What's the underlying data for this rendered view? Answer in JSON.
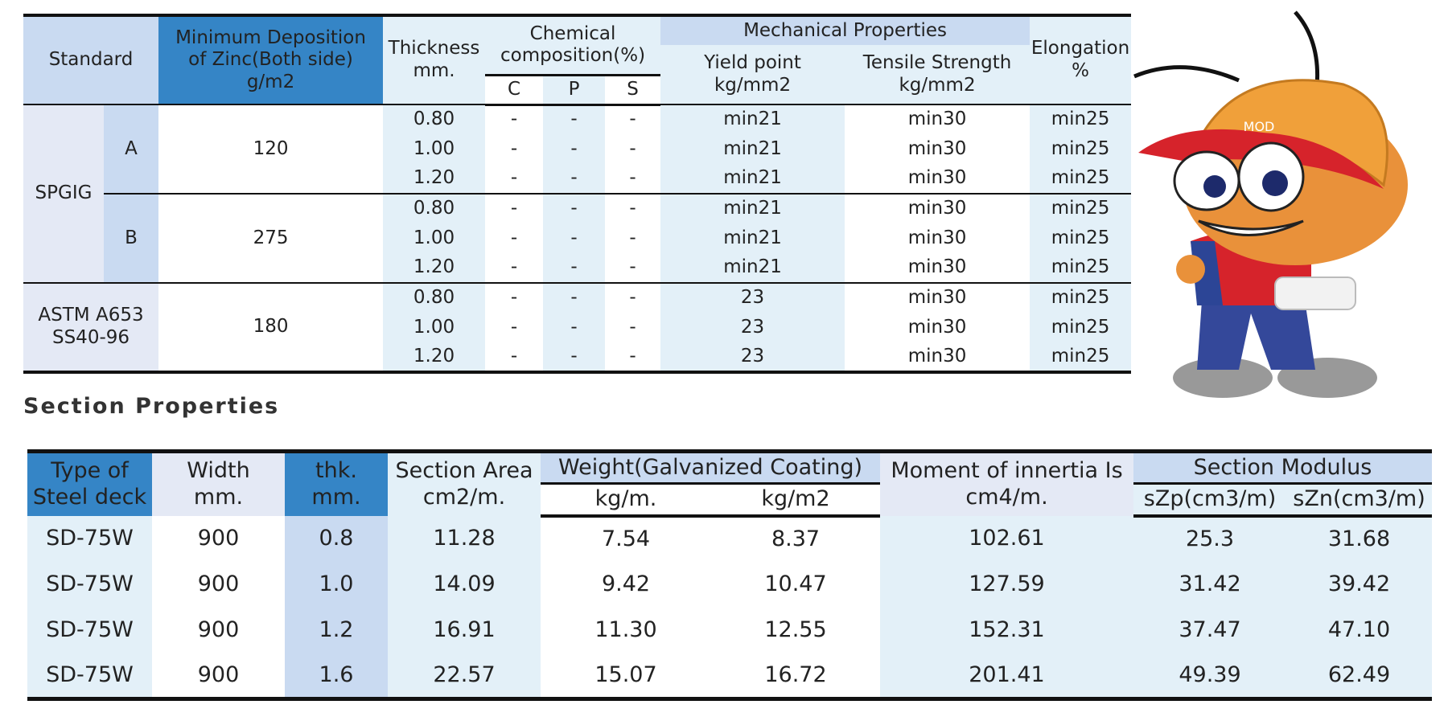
{
  "table1": {
    "headers": {
      "standard": "Standard",
      "min_deposition": "Minimum Deposition\nof Zinc(Both side)\ng/m2",
      "thickness": "Thickness\nmm.",
      "chemical": "Chemical\ncomposition(%)",
      "c": "C",
      "p": "P",
      "s": "S",
      "mechanical": "Mechanical Properties",
      "yield": "Yield point\nkg/mm2",
      "tensile": "Tensile Strength\nkg/mm2",
      "elongation": "Elongation\n%"
    },
    "groups": [
      {
        "standard": "SPGIG",
        "grades": [
          {
            "grade": "A",
            "zinc": "120",
            "rows": [
              [
                "0.80",
                "-",
                "-",
                "-",
                "min21",
                "min30",
                "min25"
              ],
              [
                "1.00",
                "-",
                "-",
                "-",
                "min21",
                "min30",
                "min25"
              ],
              [
                "1.20",
                "-",
                "-",
                "-",
                "min21",
                "min30",
                "min25"
              ]
            ]
          },
          {
            "grade": "B",
            "zinc": "275",
            "rows": [
              [
                "0.80",
                "-",
                "-",
                "-",
                "min21",
                "min30",
                "min25"
              ],
              [
                "1.00",
                "-",
                "-",
                "-",
                "min21",
                "min30",
                "min25"
              ],
              [
                "1.20",
                "-",
                "-",
                "-",
                "min21",
                "min30",
                "min25"
              ]
            ]
          }
        ]
      },
      {
        "standard": "ASTM A653\nSS40-96",
        "grades": [
          {
            "zinc": "180",
            "rows": [
              [
                "0.80",
                "-",
                "-",
                "-",
                "23",
                "min30",
                "min25"
              ],
              [
                "1.00",
                "-",
                "-",
                "-",
                "23",
                "min30",
                "min25"
              ],
              [
                "1.20",
                "-",
                "-",
                "-",
                "23",
                "min30",
                "min25"
              ]
            ]
          }
        ]
      }
    ]
  },
  "section_title": "Section Properties",
  "table2": {
    "headers": {
      "type": "Type of\nSteel deck",
      "width": "Width\nmm.",
      "thk": "thk.\nmm.",
      "area": "Section Area\ncm2/m.",
      "weight": "Weight(Galvanized Coating)",
      "kgm": "kg/m.",
      "kgm2": "kg/m2",
      "moment": "Moment of innertia Is\ncm4/m.",
      "modulus": "Section Modulus",
      "szp": "sZp(cm3/m)",
      "szn": "sZn(cm3/m)"
    },
    "rows": [
      [
        "SD-75W",
        "900",
        "0.8",
        "11.28",
        "7.54",
        "8.37",
        "102.61",
        "25.3",
        "31.68"
      ],
      [
        "SD-75W",
        "900",
        "1.0",
        "14.09",
        "9.42",
        "10.47",
        "127.59",
        "31.42",
        "39.42"
      ],
      [
        "SD-75W",
        "900",
        "1.2",
        "16.91",
        "11.30",
        "12.55",
        "152.31",
        "37.47",
        "47.10"
      ],
      [
        "SD-75W",
        "900",
        "1.6",
        "22.57",
        "15.07",
        "16.72",
        "201.41",
        "49.39",
        "62.49"
      ]
    ]
  },
  "mascot": {
    "cap_text": "MOD"
  }
}
